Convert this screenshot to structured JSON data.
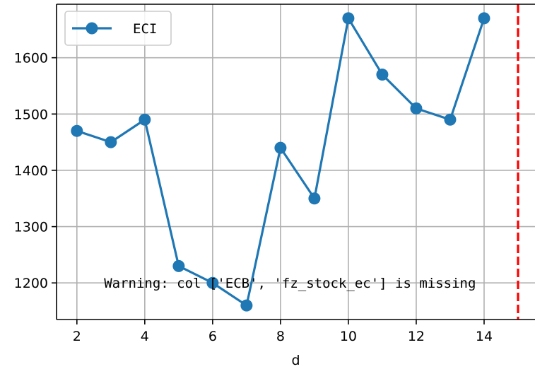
{
  "chart_data": {
    "type": "line",
    "xlabel": "d",
    "ylabel": "",
    "xlim": [
      1.4,
      15.5
    ],
    "ylim": [
      1135,
      1695
    ],
    "xticks": [
      2,
      4,
      6,
      8,
      10,
      12,
      14
    ],
    "yticks": [
      1200,
      1300,
      1400,
      1500,
      1600
    ],
    "grid": true,
    "legend_position": "upper-left",
    "series": [
      {
        "name": "ECI",
        "color": "#1f77b4",
        "marker": "circle",
        "x": [
          2,
          3,
          4,
          5,
          6,
          7,
          8,
          9,
          10,
          11,
          12,
          13,
          14
        ],
        "y": [
          1470,
          1450,
          1490,
          1230,
          1200,
          1160,
          1440,
          1350,
          1670,
          1570,
          1510,
          1490,
          1670
        ]
      }
    ],
    "vline": {
      "x": 15,
      "color": "#ff0000",
      "style": "dashed"
    },
    "annotation": {
      "text": "Warning: col ['ECB', 'fz_stock_ec'] is missing",
      "x": 2.8,
      "y": 1200
    }
  }
}
